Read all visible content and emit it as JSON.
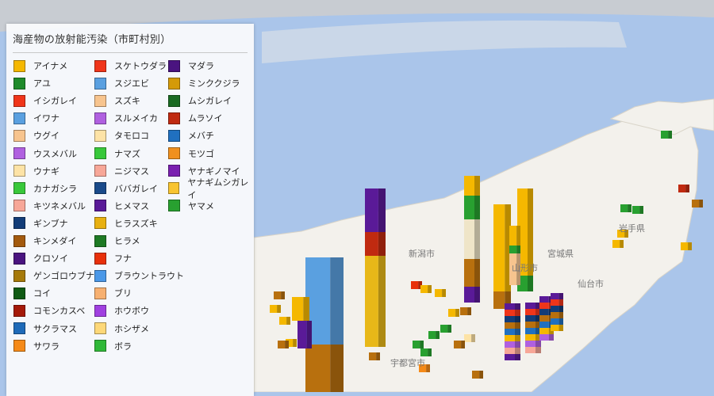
{
  "legend": {
    "title": "海産物の放射能汚染（市町村別）",
    "columns": [
      [
        {
          "label": "アイナメ",
          "color": "#f5b800"
        },
        {
          "label": "アユ",
          "color": "#1e8a2a"
        },
        {
          "label": "イシガレイ",
          "color": "#f0351a"
        },
        {
          "label": "イワナ",
          "color": "#5aa0e0"
        },
        {
          "label": "ウグイ",
          "color": "#f7c48e"
        },
        {
          "label": "ウスメバル",
          "color": "#b060e0"
        },
        {
          "label": "ウナギ",
          "color": "#fde3a6"
        },
        {
          "label": "カナガシラ",
          "color": "#38c83a"
        },
        {
          "label": "キツネメバル",
          "color": "#f7a798"
        },
        {
          "label": "ギンブナ",
          "color": "#123c78"
        },
        {
          "label": "キンメダイ",
          "color": "#a35a0e"
        },
        {
          "label": "クロソイ",
          "color": "#4a1480"
        },
        {
          "label": "ゲンゴロウブナ",
          "color": "#a67a0a"
        },
        {
          "label": "コイ",
          "color": "#0f5a14"
        },
        {
          "label": "コモンカスベ",
          "color": "#a51a0a"
        },
        {
          "label": "サクラマス",
          "color": "#1e6ab8"
        },
        {
          "label": "サワラ",
          "color": "#f58a18"
        }
      ],
      [
        {
          "label": "スケトウダラ",
          "color": "#f0351a"
        },
        {
          "label": "スジエビ",
          "color": "#5aa0e0"
        },
        {
          "label": "スズキ",
          "color": "#f7c48e"
        },
        {
          "label": "スルメイカ",
          "color": "#b060e0"
        },
        {
          "label": "タモロコ",
          "color": "#fde3a6"
        },
        {
          "label": "ナマズ",
          "color": "#38c83a"
        },
        {
          "label": "ニジマス",
          "color": "#f7a798"
        },
        {
          "label": "ババガレイ",
          "color": "#1a4a8a"
        },
        {
          "label": "ヒメマス",
          "color": "#5a1a98"
        },
        {
          "label": "ヒラスズキ",
          "color": "#e8b010"
        },
        {
          "label": "ヒラメ",
          "color": "#1e7a24"
        },
        {
          "label": "フナ",
          "color": "#e8300a"
        },
        {
          "label": "ブラウントラウト",
          "color": "#4a98e8"
        },
        {
          "label": "ブリ",
          "color": "#f7b070"
        },
        {
          "label": "ホウボウ",
          "color": "#a040e0"
        },
        {
          "label": "ホシザメ",
          "color": "#fdd878"
        },
        {
          "label": "ボラ",
          "color": "#30b838"
        }
      ],
      [
        {
          "label": "マダラ",
          "color": "#4a1480"
        },
        {
          "label": "ミンククジラ",
          "color": "#d49a08"
        },
        {
          "label": "ムシガレイ",
          "color": "#1a6a22"
        },
        {
          "label": "ムラソイ",
          "color": "#c02a10"
        },
        {
          "label": "メバチ",
          "color": "#2070c0"
        },
        {
          "label": "モツゴ",
          "color": "#f0901e"
        },
        {
          "label": "ヤナギノマイ",
          "color": "#7a20b0"
        },
        {
          "label": "ヤナギムシガレイ",
          "color": "#f8c430"
        },
        {
          "label": "ヤマメ",
          "color": "#28a030"
        }
      ]
    ]
  },
  "map": {
    "sea_color": "#aac5ea",
    "land_color": "#f3f1ec",
    "labels": [
      "新潟市",
      "山形市",
      "仙台市",
      "宇都宮市",
      "岩手県",
      "宮城県"
    ]
  }
}
